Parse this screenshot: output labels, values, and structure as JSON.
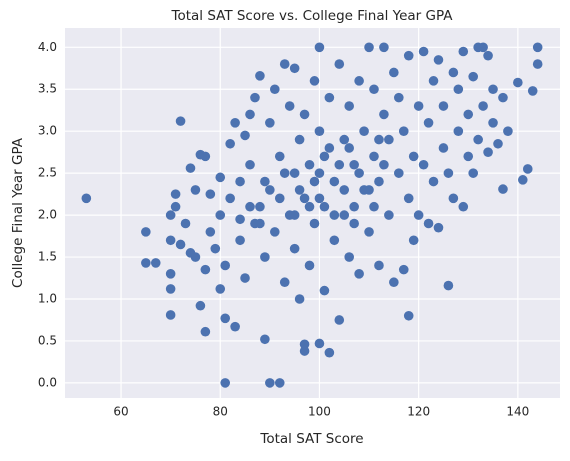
{
  "chart_data": {
    "type": "scatter",
    "title": "Total SAT Score vs. College Final Year GPA",
    "x_label": "Total SAT Score",
    "y_label": "College Final Year GPA",
    "color": "#4c72b0",
    "grid": true,
    "xlim": [
      48.7,
      148.5
    ],
    "ylim": [
      -0.18,
      4.23
    ],
    "xticks": [
      60,
      80,
      100,
      120,
      140
    ],
    "yticks": [
      {
        "value": 0,
        "label": "0.0"
      },
      {
        "value": 0.5,
        "label": "0.5"
      },
      {
        "value": 1,
        "label": "1.0"
      },
      {
        "value": 1.5,
        "label": "1.5"
      },
      {
        "value": 2,
        "label": "2.0"
      },
      {
        "value": 2.5,
        "label": "2.5"
      },
      {
        "value": 3,
        "label": "3.0"
      },
      {
        "value": 3.5,
        "label": "3.5"
      },
      {
        "value": 4,
        "label": "4.0"
      }
    ],
    "x": [
      53,
      65,
      65,
      67,
      70,
      70,
      70,
      70,
      70,
      71,
      71,
      72,
      72,
      73,
      74,
      74,
      75,
      75,
      76,
      76,
      77,
      77,
      77,
      78,
      78,
      79,
      80,
      80,
      80,
      81,
      81,
      81,
      82,
      82,
      83,
      83,
      84,
      84,
      85,
      85,
      86,
      86,
      87,
      87,
      88,
      88,
      89,
      89,
      90,
      90,
      90,
      91,
      91,
      92,
      92,
      93,
      93,
      94,
      94,
      95,
      95,
      95,
      96,
      96,
      97,
      97,
      97,
      97,
      98,
      98,
      99,
      99,
      100,
      100,
      100,
      100,
      101,
      101,
      102,
      102,
      102,
      103,
      103,
      104,
      104,
      105,
      105,
      106,
      106,
      107,
      107,
      108,
      108,
      109,
      109,
      110,
      110,
      111,
      111,
      112,
      112,
      113,
      113,
      114,
      114,
      115,
      115,
      116,
      116,
      117,
      117,
      118,
      118,
      118,
      119,
      119,
      120,
      120,
      121,
      121,
      122,
      122,
      123,
      123,
      124,
      124,
      125,
      125,
      126,
      126,
      127,
      127,
      128,
      128,
      129,
      129,
      130,
      130,
      131,
      131,
      132,
      132,
      133,
      133,
      134,
      134,
      135,
      135,
      136,
      137,
      137,
      138,
      140,
      141,
      142,
      143,
      144,
      144,
      100,
      101,
      103,
      104,
      105,
      106,
      107,
      108,
      110,
      111,
      112,
      113,
      95,
      96,
      98,
      99,
      92,
      93,
      89,
      88,
      86,
      84
    ],
    "values": [
      2.2,
      1.8,
      1.43,
      1.43,
      0.81,
      1.12,
      1.3,
      1.7,
      2.0,
      2.1,
      2.25,
      1.65,
      3.12,
      1.9,
      1.55,
      2.56,
      2.3,
      1.5,
      0.92,
      2.72,
      0.61,
      1.35,
      2.7,
      1.8,
      2.25,
      1.6,
      2.0,
      2.45,
      1.12,
      0.77,
      0.0,
      1.4,
      2.2,
      2.85,
      0.67,
      3.1,
      1.7,
      2.4,
      1.25,
      2.95,
      2.6,
      3.2,
      1.9,
      3.4,
      2.1,
      3.66,
      0.52,
      1.5,
      0.0,
      2.3,
      3.1,
      1.8,
      3.5,
      0.0,
      2.7,
      1.2,
      3.8,
      2.0,
      3.3,
      1.6,
      2.5,
      3.75,
      1.0,
      2.9,
      0.38,
      0.46,
      2.2,
      3.2,
      1.4,
      2.6,
      3.6,
      1.9,
      0.47,
      4.0,
      2.5,
      3.0,
      1.1,
      2.1,
      0.36,
      2.8,
      3.4,
      1.7,
      2.4,
      3.8,
      0.75,
      2.0,
      2.9,
      1.5,
      3.3,
      2.6,
      1.9,
      3.6,
      1.3,
      2.3,
      3.0,
      4.0,
      1.8,
      2.7,
      3.5,
      1.4,
      2.4,
      3.2,
      4.0,
      2.0,
      2.9,
      1.2,
      3.7,
      2.5,
      3.4,
      1.35,
      3.0,
      0.8,
      2.2,
      3.9,
      2.7,
      1.7,
      3.3,
      2.0,
      3.95,
      2.6,
      1.9,
      3.1,
      2.4,
      3.6,
      1.85,
      3.85,
      2.8,
      3.3,
      1.16,
      2.5,
      3.7,
      2.2,
      3.0,
      3.5,
      2.1,
      3.95,
      2.7,
      3.2,
      2.5,
      3.65,
      4.0,
      2.9,
      4.0,
      3.3,
      2.75,
      3.9,
      3.1,
      3.5,
      2.85,
      2.31,
      3.4,
      3.0,
      3.58,
      2.42,
      2.55,
      3.48,
      4.0,
      3.8,
      2.2,
      2.7,
      2.0,
      2.6,
      2.3,
      2.8,
      2.1,
      2.5,
      2.3,
      2.1,
      2.9,
      2.6,
      2.0,
      2.3,
      2.1,
      2.4,
      2.2,
      2.5,
      2.4,
      1.9,
      2.1,
      1.95
    ]
  }
}
